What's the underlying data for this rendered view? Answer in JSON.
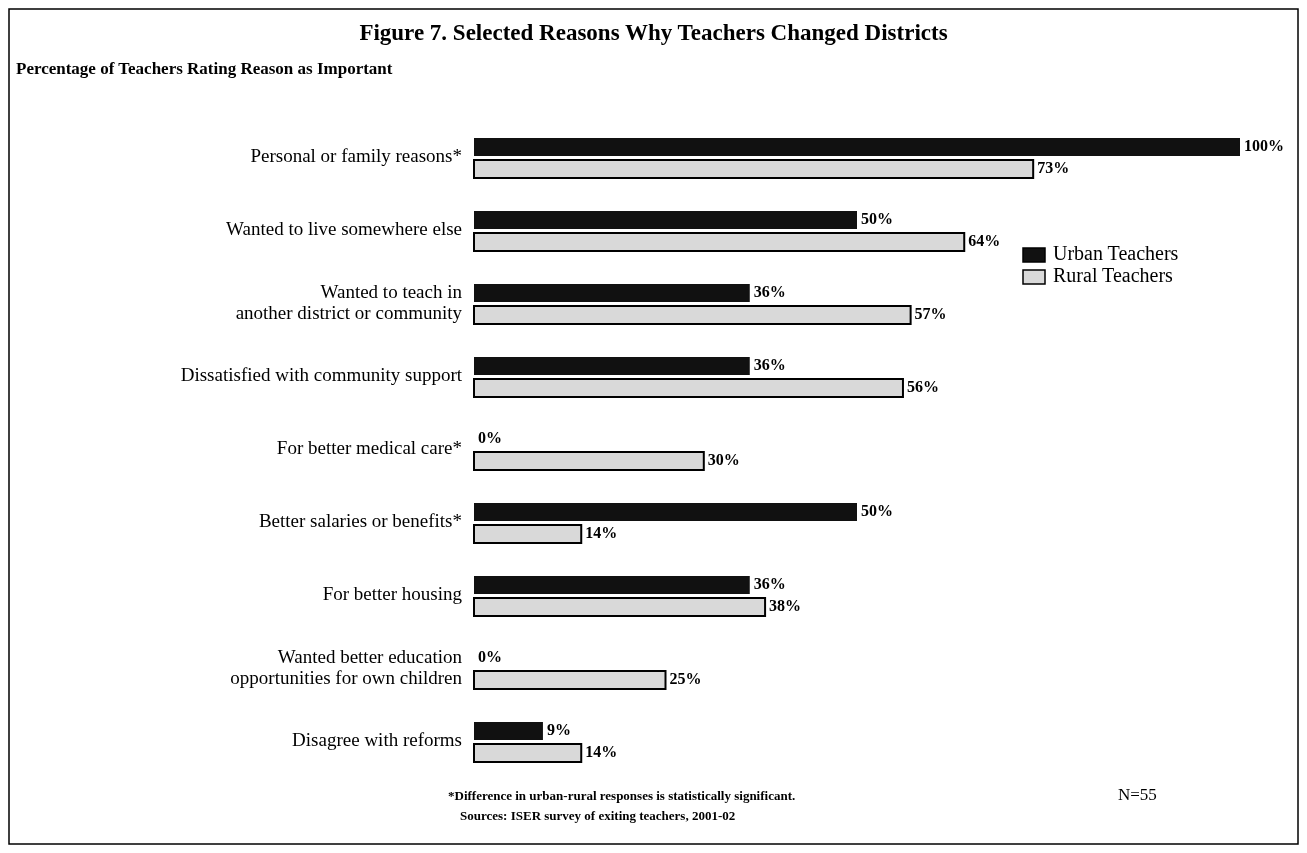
{
  "chart_data": {
    "type": "bar",
    "orientation": "horizontal",
    "title": "Figure 7. Selected Reasons Why Teachers Changed Districts",
    "subtitle": "Percentage of Teachers Rating Reason as Important",
    "categories": [
      "Personal or family reasons*",
      "Wanted to live somewhere else",
      "Wanted to teach in\nanother district or community",
      "Dissatisfied with community support",
      "For better medical care*",
      "Better salaries or benefits*",
      "For better housing",
      "Wanted better education\nopportunities for own children",
      "Disagree with reforms"
    ],
    "series": [
      {
        "name": "Urban Teachers",
        "color": "#111111",
        "values": [
          100,
          50,
          36,
          36,
          0,
          50,
          36,
          0,
          9
        ],
        "value_labels": [
          "100%",
          "50%",
          "36%",
          "36%",
          "0%",
          "50%",
          "36%",
          "0%",
          "9%"
        ]
      },
      {
        "name": "Rural Teachers",
        "color": "#d9d9d9",
        "values": [
          73,
          64,
          57,
          56,
          30,
          14,
          38,
          25,
          14
        ],
        "value_labels": [
          "73%",
          "64%",
          "57%",
          "56%",
          "30%",
          "14%",
          "38%",
          "25%",
          "14%"
        ]
      }
    ],
    "legend": "right",
    "tick_labels": "y",
    "grid": false,
    "annotations": [
      "*Difference in urban-rural responses is statistically significant.",
      "Sources: ISER survey of exiting teachers, 2001-02",
      "N=55"
    ]
  }
}
